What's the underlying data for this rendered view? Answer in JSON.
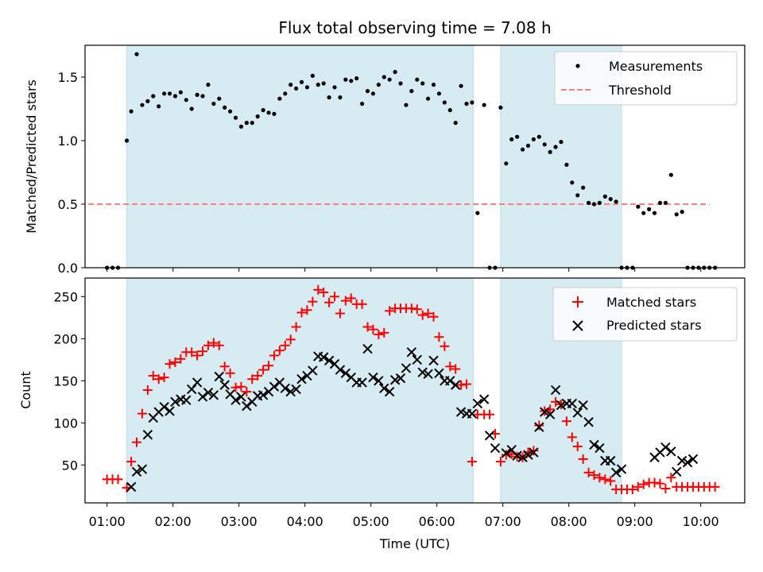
{
  "chart_data": [
    {
      "type": "scatter",
      "panel": "top",
      "title": "Flux total observing time = 7.08 h",
      "xlabel": "",
      "ylabel": "Matched/Predicted stars",
      "xlim": [
        "00:40",
        "10:40"
      ],
      "ylim": [
        0,
        1.75
      ],
      "yticks": [
        "0.0",
        "0.5",
        "1.0",
        "1.5"
      ],
      "grid": false,
      "legend_placement": "top-right",
      "shaded_intervals": [
        [
          "01:18",
          "06:33"
        ],
        [
          "06:58",
          "08:48"
        ]
      ],
      "series": [
        {
          "name": "Measurements",
          "color": "#000000",
          "marker": "dot",
          "x": [
            "01:00",
            "01:05",
            "01:10",
            "01:18",
            "01:22",
            "01:27",
            "01:32",
            "01:37",
            "01:42",
            "01:47",
            "01:52",
            "01:57",
            "02:02",
            "02:07",
            "02:12",
            "02:17",
            "02:22",
            "02:27",
            "02:32",
            "02:37",
            "02:42",
            "02:47",
            "02:52",
            "02:57",
            "03:02",
            "03:07",
            "03:12",
            "03:17",
            "03:22",
            "03:27",
            "03:32",
            "03:37",
            "03:42",
            "03:47",
            "03:52",
            "03:57",
            "04:02",
            "04:07",
            "04:12",
            "04:17",
            "04:22",
            "04:27",
            "04:32",
            "04:37",
            "04:42",
            "04:47",
            "04:52",
            "04:57",
            "05:02",
            "05:07",
            "05:12",
            "05:17",
            "05:22",
            "05:27",
            "05:32",
            "05:37",
            "05:42",
            "05:47",
            "05:52",
            "05:57",
            "06:02",
            "06:07",
            "06:12",
            "06:17",
            "06:22",
            "06:27",
            "06:32",
            "06:37",
            "06:43",
            "06:48",
            "06:53",
            "06:58",
            "07:03",
            "07:08",
            "07:13",
            "07:18",
            "07:23",
            "07:28",
            "07:33",
            "07:38",
            "07:43",
            "07:48",
            "07:53",
            "07:58",
            "08:03",
            "08:08",
            "08:13",
            "08:18",
            "08:23",
            "08:28",
            "08:33",
            "08:38",
            "08:43",
            "08:48",
            "08:53",
            "08:58",
            "09:03",
            "09:08",
            "09:13",
            "09:18",
            "09:23",
            "09:28",
            "09:33",
            "09:38",
            "09:43",
            "09:48",
            "09:53",
            "09:58",
            "10:03",
            "10:08",
            "10:13"
          ],
          "y": [
            0,
            0,
            0,
            1.0,
            1.23,
            1.68,
            1.28,
            1.31,
            1.35,
            1.27,
            1.37,
            1.37,
            1.35,
            1.38,
            1.32,
            1.25,
            1.36,
            1.35,
            1.44,
            1.29,
            1.33,
            1.26,
            1.23,
            1.18,
            1.11,
            1.14,
            1.14,
            1.19,
            1.24,
            1.22,
            1.21,
            1.33,
            1.37,
            1.44,
            1.41,
            1.46,
            1.42,
            1.51,
            1.44,
            1.45,
            1.34,
            1.42,
            1.34,
            1.48,
            1.47,
            1.49,
            1.29,
            1.39,
            1.37,
            1.44,
            1.5,
            1.48,
            1.54,
            1.45,
            1.28,
            1.39,
            1.48,
            1.45,
            1.33,
            1.44,
            1.37,
            1.3,
            1.24,
            1.14,
            1.43,
            1.29,
            1.3,
            0.43,
            1.28,
            0,
            0,
            1.26,
            0.82,
            1.01,
            1.03,
            0.93,
            0.96,
            1.01,
            1.03,
            0.97,
            0.91,
            0.95,
            0.99,
            0.81,
            0.67,
            0.57,
            0.63,
            0.51,
            0.5,
            0.51,
            0.56,
            0.54,
            0.52,
            0,
            0,
            0,
            0.48,
            0.43,
            0.46,
            0.43,
            0.51,
            0.51,
            0.73,
            0.42,
            0.44,
            0,
            0,
            0,
            0,
            0,
            0
          ]
        },
        {
          "name": "Threshold",
          "color": "#ff7f7f",
          "style": "dashed",
          "x": [
            "00:43",
            "10:08"
          ],
          "y": [
            0.5,
            0.5
          ]
        }
      ]
    },
    {
      "type": "scatter",
      "panel": "bottom",
      "title": "",
      "xlabel": "Time (UTC)",
      "ylabel": "Count",
      "xlim": [
        "00:40",
        "10:40"
      ],
      "ylim": [
        5,
        272
      ],
      "yticks": [
        "50",
        "100",
        "150",
        "200",
        "250"
      ],
      "xticks": [
        "01:00",
        "02:00",
        "03:00",
        "04:00",
        "05:00",
        "06:00",
        "07:00",
        "08:00",
        "09:00",
        "10:00"
      ],
      "grid": false,
      "legend_placement": "top-right",
      "shaded_intervals": [
        [
          "01:18",
          "06:33"
        ],
        [
          "06:58",
          "08:48"
        ]
      ],
      "series": [
        {
          "name": "Matched stars",
          "color": "#ff0000",
          "marker": "plus",
          "x": [
            "01:00",
            "01:05",
            "01:10",
            "01:18",
            "01:22",
            "01:27",
            "01:32",
            "01:37",
            "01:42",
            "01:47",
            "01:52",
            "01:57",
            "02:02",
            "02:07",
            "02:12",
            "02:17",
            "02:22",
            "02:27",
            "02:32",
            "02:37",
            "02:42",
            "02:47",
            "02:52",
            "02:57",
            "03:02",
            "03:07",
            "03:12",
            "03:17",
            "03:22",
            "03:27",
            "03:32",
            "03:37",
            "03:42",
            "03:47",
            "03:52",
            "03:57",
            "04:02",
            "04:07",
            "04:12",
            "04:17",
            "04:22",
            "04:27",
            "04:32",
            "04:37",
            "04:42",
            "04:47",
            "04:52",
            "04:57",
            "05:02",
            "05:07",
            "05:12",
            "05:17",
            "05:22",
            "05:27",
            "05:32",
            "05:37",
            "05:42",
            "05:47",
            "05:52",
            "05:57",
            "06:02",
            "06:07",
            "06:12",
            "06:17",
            "06:22",
            "06:27",
            "06:32",
            "06:37",
            "06:43",
            "06:48",
            "06:53",
            "06:58",
            "07:03",
            "07:08",
            "07:13",
            "07:18",
            "07:23",
            "07:28",
            "07:33",
            "07:38",
            "07:43",
            "07:48",
            "07:53",
            "07:58",
            "08:03",
            "08:08",
            "08:13",
            "08:18",
            "08:23",
            "08:28",
            "08:33",
            "08:38",
            "08:43",
            "08:48",
            "08:53",
            "08:58",
            "09:03",
            "09:08",
            "09:13",
            "09:18",
            "09:23",
            "09:28",
            "09:33",
            "09:38",
            "09:43",
            "09:48",
            "09:53",
            "09:58",
            "10:03",
            "10:08",
            "10:13"
          ],
          "y": [
            33,
            33,
            33,
            23,
            54,
            77,
            111,
            139,
            156,
            152,
            154,
            170,
            172,
            176,
            184,
            184,
            180,
            185,
            192,
            195,
            192,
            167,
            159,
            142,
            143,
            137,
            152,
            156,
            163,
            168,
            180,
            186,
            192,
            199,
            214,
            231,
            234,
            244,
            258,
            255,
            243,
            250,
            230,
            245,
            248,
            241,
            241,
            214,
            211,
            205,
            207,
            233,
            236,
            236,
            236,
            236,
            235,
            228,
            230,
            226,
            202,
            191,
            167,
            164,
            145,
            146,
            54,
            110,
            110,
            110,
            87,
            54,
            62,
            63,
            60,
            59,
            65,
            67,
            97,
            114,
            116,
            125,
            122,
            102,
            83,
            72,
            57,
            41,
            38,
            35,
            33,
            31,
            21,
            21,
            21,
            21,
            24,
            27,
            29,
            29,
            28,
            22,
            35,
            24,
            24,
            24,
            24,
            24,
            24,
            24,
            24
          ]
        },
        {
          "name": "Predicted stars",
          "color": "#000000",
          "marker": "x",
          "x": [
            "01:22",
            "01:27",
            "01:32",
            "01:37",
            "01:42",
            "01:47",
            "01:52",
            "01:57",
            "02:02",
            "02:07",
            "02:12",
            "02:17",
            "02:22",
            "02:27",
            "02:32",
            "02:37",
            "02:42",
            "02:47",
            "02:52",
            "02:57",
            "03:02",
            "03:07",
            "03:12",
            "03:17",
            "03:22",
            "03:27",
            "03:32",
            "03:37",
            "03:42",
            "03:47",
            "03:52",
            "03:57",
            "04:02",
            "04:07",
            "04:12",
            "04:17",
            "04:22",
            "04:27",
            "04:32",
            "04:37",
            "04:42",
            "04:47",
            "04:52",
            "04:57",
            "05:02",
            "05:07",
            "05:12",
            "05:17",
            "05:22",
            "05:27",
            "05:32",
            "05:37",
            "05:42",
            "05:47",
            "05:52",
            "05:57",
            "06:02",
            "06:07",
            "06:12",
            "06:17",
            "06:22",
            "06:27",
            "06:32",
            "06:37",
            "06:43",
            "06:48",
            "06:53",
            "07:03",
            "07:08",
            "07:13",
            "07:18",
            "07:23",
            "07:28",
            "07:33",
            "07:38",
            "07:43",
            "07:48",
            "07:53",
            "07:58",
            "08:03",
            "08:08",
            "08:13",
            "08:18",
            "08:23",
            "08:28",
            "08:33",
            "08:38",
            "08:43",
            "08:48",
            "09:18",
            "09:23",
            "09:28",
            "09:33",
            "09:38",
            "09:43",
            "09:48",
            "09:53"
          ],
          "y": [
            24,
            42,
            45,
            86,
            106,
            113,
            119,
            114,
            125,
            128,
            127,
            140,
            148,
            131,
            136,
            133,
            155,
            145,
            134,
            127,
            131,
            120,
            125,
            132,
            133,
            137,
            143,
            148,
            141,
            137,
            140,
            152,
            156,
            162,
            179,
            178,
            174,
            170,
            163,
            159,
            154,
            148,
            148,
            188,
            154,
            150,
            141,
            137,
            151,
            153,
            165,
            184,
            175,
            160,
            158,
            174,
            159,
            150,
            150,
            145,
            113,
            111,
            111,
            123,
            128,
            85,
            70,
            64,
            68,
            61,
            59,
            62,
            65,
            95,
            113,
            110,
            139,
            121,
            123,
            123,
            112,
            121,
            101,
            74,
            70,
            55,
            55,
            41,
            45,
            59,
            65,
            71,
            66,
            42,
            55,
            53,
            57
          ]
        }
      ]
    }
  ]
}
